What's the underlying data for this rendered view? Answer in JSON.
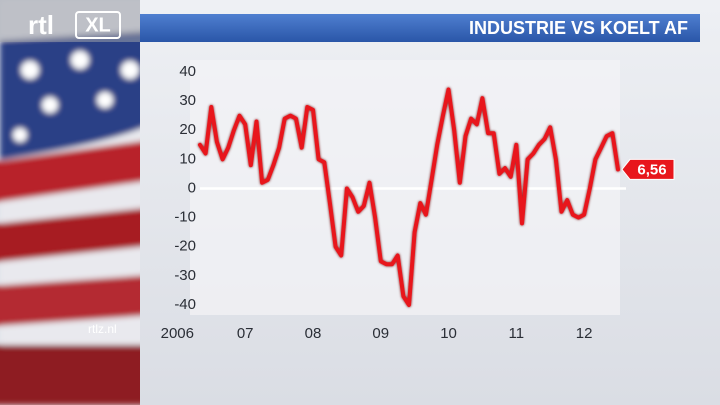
{
  "chart_data": {
    "type": "line",
    "title": "INDUSTRIE VS KOELT AF",
    "logo": [
      "rtl",
      "XL"
    ],
    "source": "rtlz.nl",
    "categories": [
      "2006",
      null,
      null,
      null,
      null,
      null,
      null,
      null,
      "07",
      null,
      null,
      null,
      null,
      null,
      null,
      null,
      null,
      null,
      null,
      null,
      "08",
      null,
      null,
      null,
      null,
      null,
      null,
      null,
      null,
      null,
      null,
      null,
      "09",
      null,
      null,
      null,
      null,
      null,
      null,
      null,
      null,
      null,
      null,
      null,
      "10",
      null,
      null,
      null,
      null,
      null,
      null,
      null,
      null,
      null,
      null,
      null,
      "11",
      null,
      null,
      null,
      null,
      null,
      null,
      null,
      null,
      null,
      null,
      null,
      "12",
      null,
      null,
      null,
      null,
      null,
      null
    ],
    "values": [
      15,
      12,
      28,
      16,
      10,
      14,
      20,
      25,
      22,
      8,
      23,
      2,
      3,
      8,
      14,
      24,
      25,
      24,
      14,
      28,
      27,
      10,
      9,
      -5,
      -20,
      -23,
      0,
      -3,
      -8,
      -6,
      2,
      -10,
      -25,
      -26,
      -26,
      -23,
      -37,
      -40,
      -15,
      -5,
      -9,
      3,
      15,
      25,
      34,
      20,
      2,
      18,
      24,
      22,
      31,
      19,
      19,
      5,
      7,
      4,
      15,
      -12,
      10,
      12,
      15,
      17,
      21,
      10,
      -8,
      -4,
      -9,
      -10,
      -9,
      0,
      10,
      14,
      18,
      19,
      6.56
    ],
    "value_labels": [
      null,
      null,
      null,
      null,
      null,
      null,
      null,
      null,
      null,
      null,
      null,
      null,
      null,
      null,
      null,
      null,
      null,
      null,
      null,
      null,
      null,
      null,
      null,
      null,
      null,
      null,
      null,
      null,
      null,
      null,
      null,
      null,
      null,
      null,
      null,
      null,
      null,
      null,
      null,
      null,
      null,
      null,
      null,
      null,
      null,
      null,
      null,
      null,
      null,
      null,
      null,
      null,
      null,
      null,
      null,
      null,
      null,
      null,
      null,
      null,
      null,
      null,
      null,
      null,
      null,
      null,
      null,
      null,
      null,
      null,
      null,
      null,
      null,
      null,
      "6,56"
    ],
    "color": "#e8161c",
    "ylim": [
      -40,
      40
    ],
    "yticks": [
      -40,
      -30,
      -20,
      -10,
      0,
      10,
      20,
      30,
      40
    ]
  }
}
